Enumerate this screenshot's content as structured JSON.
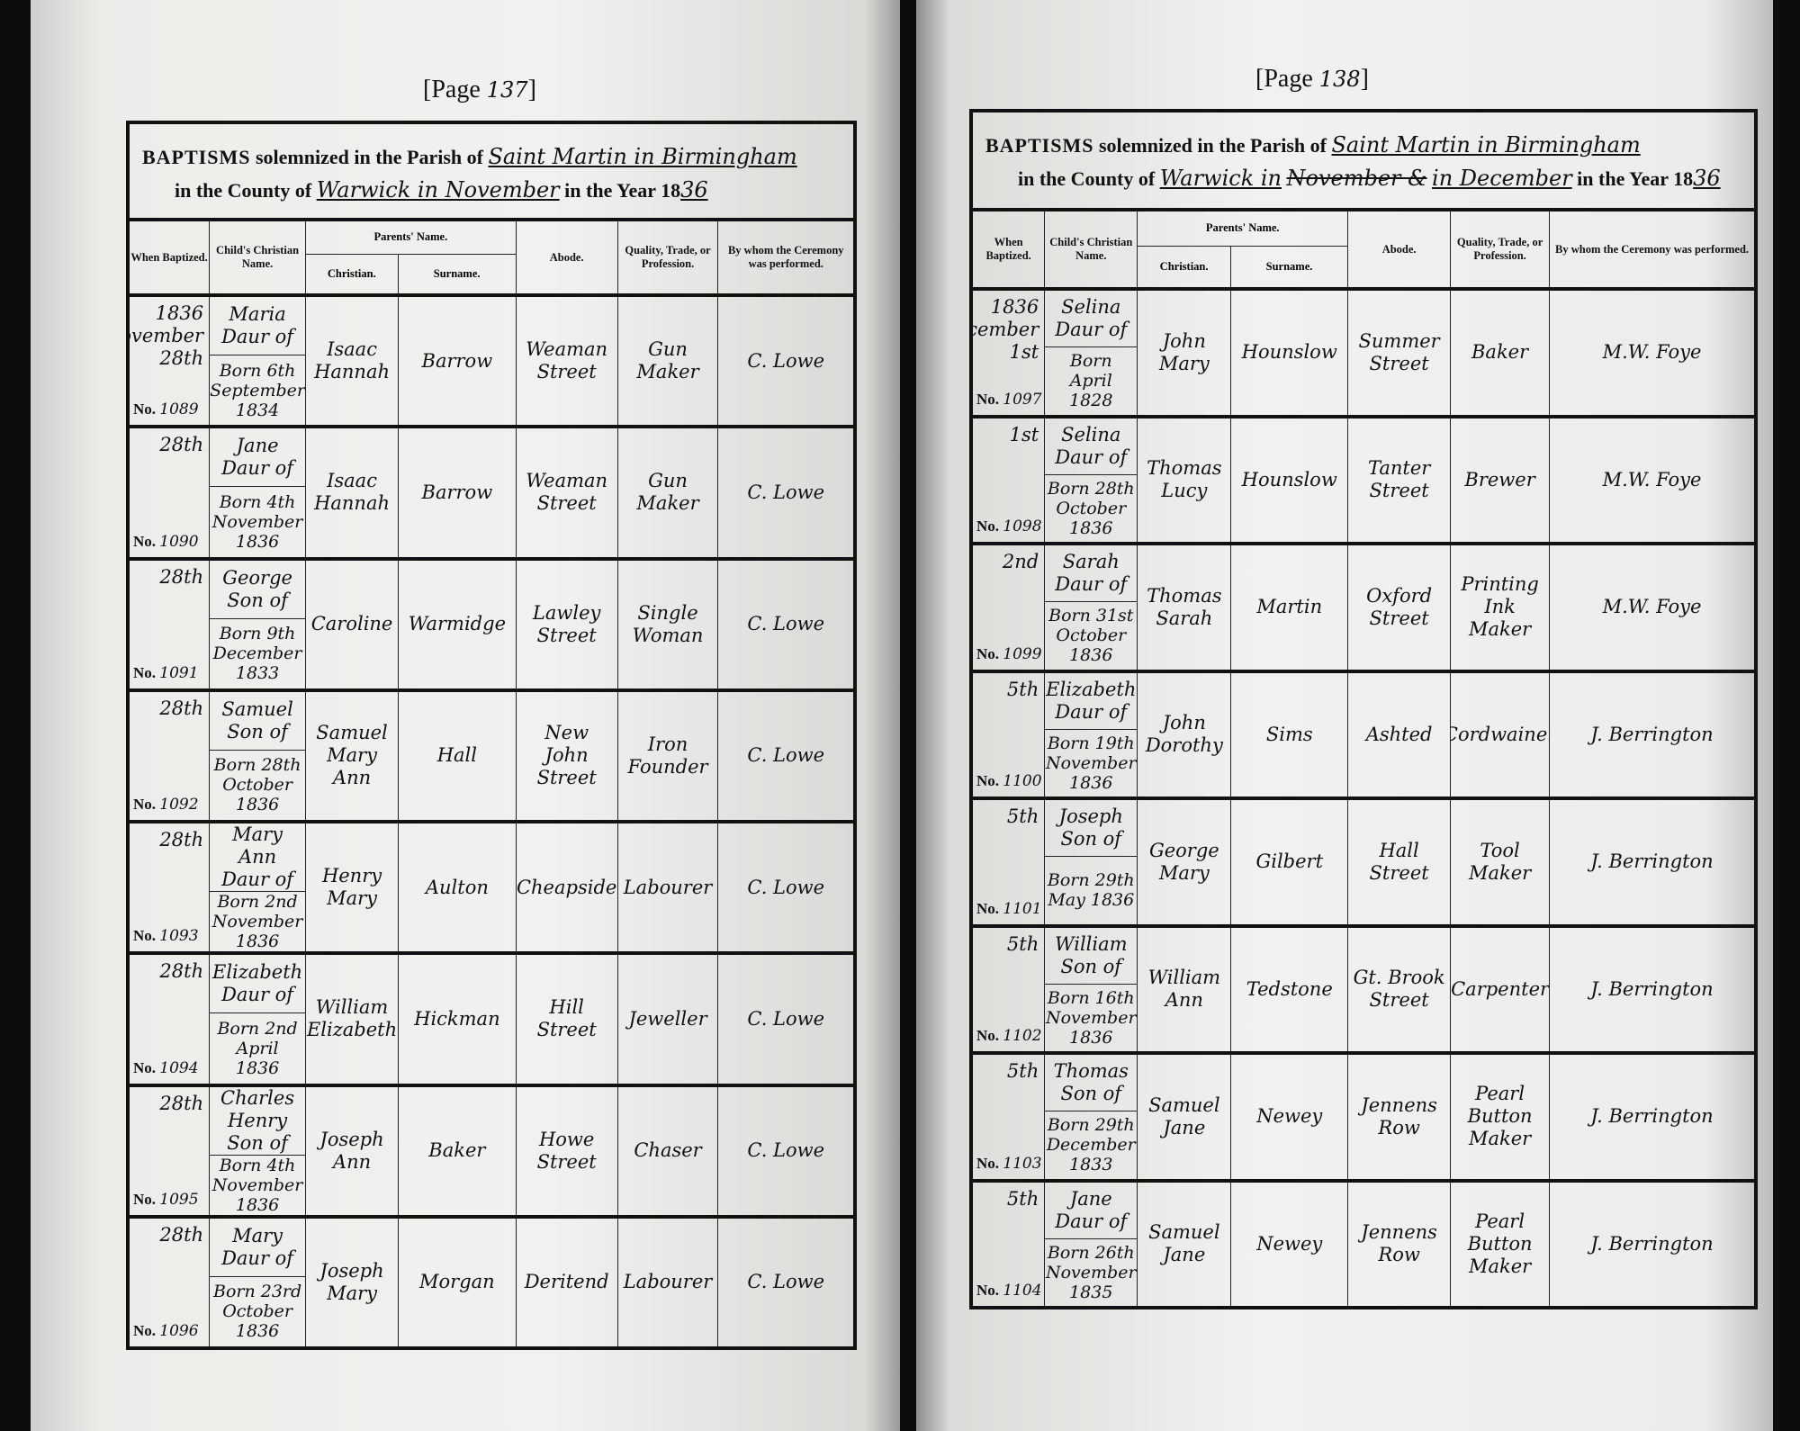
{
  "headings": {
    "baptisms": "BAPTISMS",
    "solemnized": "solemnized in the Parish of",
    "county_of": "in the County of",
    "in_year": "in the Year 18",
    "columns": {
      "when": "When Baptized.",
      "child": "Child's Christian Name.",
      "parents": "Parents' Name.",
      "christian": "Christian.",
      "surname": "Surname.",
      "abode": "Abode.",
      "profession": "Quality, Trade, or Profession.",
      "minister": "By whom the Ceremony was performed."
    },
    "no_prefix": "No."
  },
  "pages": [
    {
      "page_label": "[Page",
      "page_number": "137",
      "page_close": "]",
      "parish": "Saint Martin in Birmingham",
      "county": "Warwick in November",
      "county_struck": "",
      "county_after": "",
      "year_suffix": "36",
      "entries": [
        {
          "when": [
            "1836",
            "November",
            "28th"
          ],
          "no": "1089",
          "child": [
            "Maria",
            "Daur of"
          ],
          "born": [
            "Born 6th",
            "September",
            "1834"
          ],
          "christian": [
            "Isaac",
            "Hannah"
          ],
          "surname": "Barrow",
          "abode": [
            "Weaman",
            "Street"
          ],
          "profession": [
            "Gun",
            "Maker"
          ],
          "minister": "C. Lowe"
        },
        {
          "when": [
            "28th"
          ],
          "no": "1090",
          "child": [
            "Jane",
            "Daur of"
          ],
          "born": [
            "Born 4th",
            "November",
            "1836"
          ],
          "christian": [
            "Isaac",
            "Hannah"
          ],
          "surname": "Barrow",
          "abode": [
            "Weaman",
            "Street"
          ],
          "profession": [
            "Gun",
            "Maker"
          ],
          "minister": "C. Lowe"
        },
        {
          "when": [
            "28th"
          ],
          "no": "1091",
          "child": [
            "George",
            "Son of"
          ],
          "born": [
            "Born 9th",
            "December",
            "1833"
          ],
          "christian": [
            "Caroline"
          ],
          "surname": "Warmidge",
          "abode": [
            "Lawley",
            "Street"
          ],
          "profession": [
            "Single",
            "Woman"
          ],
          "minister": "C. Lowe"
        },
        {
          "when": [
            "28th"
          ],
          "no": "1092",
          "child": [
            "Samuel",
            "Son of"
          ],
          "born": [
            "Born 28th",
            "October",
            "1836"
          ],
          "christian": [
            "Samuel",
            "Mary",
            "Ann"
          ],
          "surname": "Hall",
          "abode": [
            "New",
            "John",
            "Street"
          ],
          "profession": [
            "Iron",
            "Founder"
          ],
          "minister": "C. Lowe"
        },
        {
          "when": [
            "28th"
          ],
          "no": "1093",
          "child": [
            "Mary",
            "Ann",
            "Daur of"
          ],
          "born": [
            "Born 2nd",
            "November",
            "1836"
          ],
          "christian": [
            "Henry",
            "Mary"
          ],
          "surname": "Aulton",
          "abode": [
            "Cheapside"
          ],
          "profession": [
            "Labourer"
          ],
          "minister": "C. Lowe"
        },
        {
          "when": [
            "28th"
          ],
          "no": "1094",
          "child": [
            "Elizabeth",
            "Daur of"
          ],
          "born": [
            "Born 2nd",
            "April",
            "1836"
          ],
          "christian": [
            "William",
            "Elizabeth"
          ],
          "surname": "Hickman",
          "abode": [
            "Hill",
            "Street"
          ],
          "profession": [
            "Jeweller"
          ],
          "minister": "C. Lowe"
        },
        {
          "when": [
            "28th"
          ],
          "no": "1095",
          "child": [
            "Charles",
            "Henry",
            "Son of"
          ],
          "born": [
            "Born 4th",
            "November",
            "1836"
          ],
          "christian": [
            "Joseph",
            "Ann"
          ],
          "surname": "Baker",
          "abode": [
            "Howe",
            "Street"
          ],
          "profession": [
            "Chaser"
          ],
          "minister": "C. Lowe"
        },
        {
          "when": [
            "28th"
          ],
          "no": "1096",
          "child": [
            "Mary",
            "Daur of"
          ],
          "born": [
            "Born 23rd",
            "October",
            "1836"
          ],
          "christian": [
            "Joseph",
            "Mary"
          ],
          "surname": "Morgan",
          "abode": [
            "Deritend"
          ],
          "profession": [
            "Labourer"
          ],
          "minister": "C. Lowe"
        }
      ]
    },
    {
      "page_label": "[Page",
      "page_number": "138",
      "page_close": "]",
      "parish": "Saint Martin in Birmingham",
      "county": "Warwick in",
      "county_struck": "November &",
      "county_after": "in December",
      "year_suffix": "36",
      "entries": [
        {
          "when": [
            "1836",
            "December",
            "1st"
          ],
          "no": "1097",
          "child": [
            "Selina",
            "Daur of"
          ],
          "born": [
            "Born",
            "April",
            "1828"
          ],
          "christian": [
            "John",
            "Mary"
          ],
          "surname": "Hounslow",
          "abode": [
            "Summer",
            "Street"
          ],
          "profession": [
            "Baker"
          ],
          "minister": "M.W. Foye"
        },
        {
          "when": [
            "1st"
          ],
          "no": "1098",
          "child": [
            "Selina",
            "Daur of"
          ],
          "born": [
            "Born 28th",
            "October",
            "1836"
          ],
          "christian": [
            "Thomas",
            "Lucy"
          ],
          "surname": "Hounslow",
          "abode": [
            "Tanter",
            "Street"
          ],
          "profession": [
            "Brewer"
          ],
          "minister": "M.W. Foye"
        },
        {
          "when": [
            "2nd"
          ],
          "no": "1099",
          "child": [
            "Sarah",
            "Daur of"
          ],
          "born": [
            "Born 31st",
            "October",
            "1836"
          ],
          "christian": [
            "Thomas",
            "Sarah"
          ],
          "surname": "Martin",
          "abode": [
            "Oxford",
            "Street"
          ],
          "profession": [
            "Printing",
            "Ink",
            "Maker"
          ],
          "minister": "M.W. Foye"
        },
        {
          "when": [
            "5th"
          ],
          "no": "1100",
          "child": [
            "Elizabeth",
            "Daur of"
          ],
          "born": [
            "Born 19th",
            "November",
            "1836"
          ],
          "christian": [
            "John",
            "Dorothy"
          ],
          "surname": "Sims",
          "abode": [
            "Ashted"
          ],
          "profession": [
            "Cordwainer"
          ],
          "minister": "J. Berrington"
        },
        {
          "when": [
            "5th"
          ],
          "no": "1101",
          "child": [
            "Joseph",
            "Son of"
          ],
          "born": [
            "Born 29th",
            "May 1836"
          ],
          "christian": [
            "George",
            "Mary"
          ],
          "surname": "Gilbert",
          "abode": [
            "Hall",
            "Street"
          ],
          "profession": [
            "Tool",
            "Maker"
          ],
          "minister": "J. Berrington"
        },
        {
          "when": [
            "5th"
          ],
          "no": "1102",
          "child": [
            "William",
            "Son of"
          ],
          "born": [
            "Born 16th",
            "November",
            "1836"
          ],
          "christian": [
            "William",
            "Ann"
          ],
          "surname": "Tedstone",
          "abode": [
            "Gt. Brook",
            "Street"
          ],
          "profession": [
            "Carpenter"
          ],
          "minister": "J. Berrington"
        },
        {
          "when": [
            "5th"
          ],
          "no": "1103",
          "child": [
            "Thomas",
            "Son of"
          ],
          "born": [
            "Born 29th",
            "December",
            "1833"
          ],
          "christian": [
            "Samuel",
            "Jane"
          ],
          "surname": "Newey",
          "abode": [
            "Jennens",
            "Row"
          ],
          "profession": [
            "Pearl",
            "Button",
            "Maker"
          ],
          "minister": "J. Berrington"
        },
        {
          "when": [
            "5th"
          ],
          "no": "1104",
          "child": [
            "Jane",
            "Daur of"
          ],
          "born": [
            "Born 26th",
            "November",
            "1835"
          ],
          "christian": [
            "Samuel",
            "Jane"
          ],
          "surname": "Newey",
          "abode": [
            "Jennens",
            "Row"
          ],
          "profession": [
            "Pearl",
            "Button",
            "Maker"
          ],
          "minister": "J. Berrington"
        }
      ]
    }
  ]
}
